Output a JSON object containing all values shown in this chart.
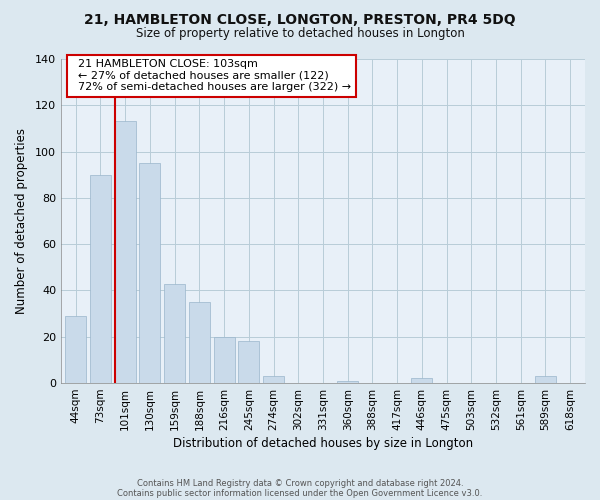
{
  "title1": "21, HAMBLETON CLOSE, LONGTON, PRESTON, PR4 5DQ",
  "title2": "Size of property relative to detached houses in Longton",
  "xlabel": "Distribution of detached houses by size in Longton",
  "ylabel": "Number of detached properties",
  "bar_labels": [
    "44sqm",
    "73sqm",
    "101sqm",
    "130sqm",
    "159sqm",
    "188sqm",
    "216sqm",
    "245sqm",
    "274sqm",
    "302sqm",
    "331sqm",
    "360sqm",
    "388sqm",
    "417sqm",
    "446sqm",
    "475sqm",
    "503sqm",
    "532sqm",
    "561sqm",
    "589sqm",
    "618sqm"
  ],
  "bar_values": [
    29,
    90,
    113,
    95,
    43,
    35,
    20,
    18,
    3,
    0,
    0,
    1,
    0,
    0,
    2,
    0,
    0,
    0,
    0,
    3,
    0
  ],
  "bar_color": "#c9daea",
  "bar_edge_color": "#9ab5cb",
  "highlight_bar_index": 2,
  "vline_color": "#cc0000",
  "ylim": [
    0,
    140
  ],
  "yticks": [
    0,
    20,
    40,
    60,
    80,
    100,
    120,
    140
  ],
  "annotation_title": "21 HAMBLETON CLOSE: 103sqm",
  "annotation_line1": "← 27% of detached houses are smaller (122)",
  "annotation_line2": "72% of semi-detached houses are larger (322) →",
  "footer1": "Contains HM Land Registry data © Crown copyright and database right 2024.",
  "footer2": "Contains public sector information licensed under the Open Government Licence v3.0.",
  "bg_color": "#dce8f0",
  "plot_bg_color": "#e8f0f8",
  "grid_color": "#b8ccd8"
}
